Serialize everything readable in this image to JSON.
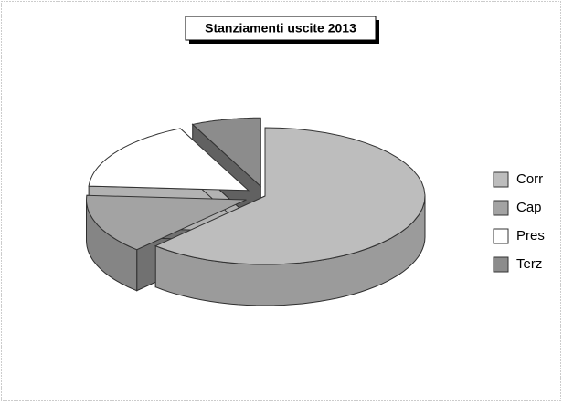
{
  "chart_data": {
    "type": "pie",
    "title": "Stanziamenti uscite 2013",
    "categories": [
      "Corr",
      "Cap",
      "Pres",
      "Terz"
    ],
    "values": [
      62,
      14,
      17,
      7
    ],
    "colors": [
      "#bdbdbd",
      "#a3a3a3",
      "#ffffff",
      "#8c8c8c"
    ],
    "legend": "right"
  }
}
